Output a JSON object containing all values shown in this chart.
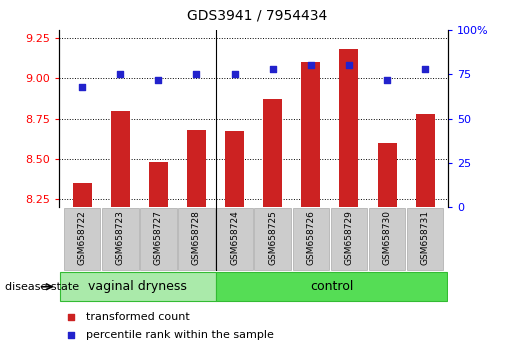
{
  "title": "GDS3941 / 7954434",
  "categories": [
    "GSM658722",
    "GSM658723",
    "GSM658727",
    "GSM658728",
    "GSM658724",
    "GSM658725",
    "GSM658726",
    "GSM658729",
    "GSM658730",
    "GSM658731"
  ],
  "bar_values": [
    8.35,
    8.8,
    8.48,
    8.68,
    8.67,
    8.87,
    9.1,
    9.18,
    8.6,
    8.78
  ],
  "dot_values": [
    68,
    75,
    72,
    75,
    75,
    78,
    80,
    80,
    72,
    78
  ],
  "bar_color": "#cc2222",
  "dot_color": "#2222cc",
  "ylim_left": [
    8.2,
    9.3
  ],
  "ylim_right": [
    0,
    100
  ],
  "yticks_left": [
    8.25,
    8.5,
    8.75,
    9.0,
    9.25
  ],
  "yticks_right": [
    0,
    25,
    50,
    75,
    100
  ],
  "group_labels": [
    "vaginal dryness",
    "control"
  ],
  "disease_state_label": "disease state",
  "legend_bar_label": "transformed count",
  "legend_dot_label": "percentile rank within the sample",
  "bar_bottom": 8.2,
  "separator_x": 4,
  "bar_width": 0.5,
  "xlim": [
    -0.6,
    9.6
  ],
  "group1_color": "#aaeaaa",
  "group2_color": "#55dd55",
  "group_border_color": "#33bb33",
  "tick_bg_color": "#cccccc",
  "tick_border_color": "#aaaaaa"
}
